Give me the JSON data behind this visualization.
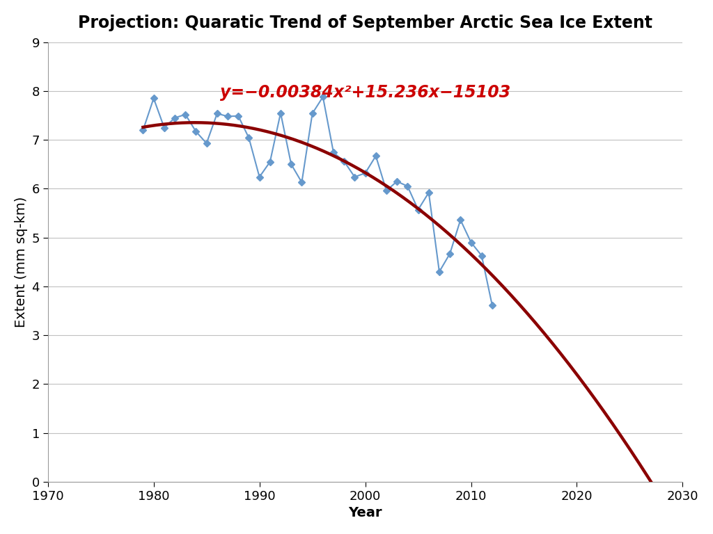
{
  "title": "Projection: Quaratic Trend of September Arctic Sea Ice Extent",
  "xlabel": "Year",
  "ylabel": "Extent (mm sq-km)",
  "equation": "y=−0.00384x²+15.236x−15103",
  "bg_color": "#ffffff",
  "line_color": "#6699cc",
  "trend_color": "#8b0000",
  "eq_color": "#cc0000",
  "xlim": [
    1970,
    2030
  ],
  "ylim": [
    0,
    9
  ],
  "xticks": [
    1970,
    1980,
    1990,
    2000,
    2010,
    2020,
    2030
  ],
  "yticks": [
    0,
    1,
    2,
    3,
    4,
    5,
    6,
    7,
    8,
    9
  ],
  "a": -0.00384,
  "b": 15.236,
  "c": -15103,
  "trend_x_start": 1979,
  "trend_x_end": 2028,
  "data_years": [
    1979,
    1980,
    1981,
    1982,
    1983,
    1984,
    1985,
    1986,
    1987,
    1988,
    1989,
    1990,
    1991,
    1992,
    1993,
    1994,
    1995,
    1996,
    1997,
    1998,
    1999,
    2000,
    2001,
    2002,
    2003,
    2004,
    2005,
    2006,
    2007,
    2008,
    2009,
    2010,
    2011,
    2012
  ],
  "data_values": [
    7.2,
    7.85,
    7.25,
    7.45,
    7.52,
    7.17,
    6.93,
    7.54,
    7.48,
    7.49,
    7.04,
    6.24,
    6.55,
    7.55,
    6.5,
    6.13,
    7.54,
    7.88,
    6.74,
    6.56,
    6.24,
    6.32,
    6.67,
    5.96,
    6.15,
    6.05,
    5.57,
    5.92,
    4.3,
    4.67,
    5.36,
    4.9,
    4.63,
    3.61
  ],
  "title_fontsize": 17,
  "label_fontsize": 14,
  "tick_fontsize": 13,
  "eq_fontsize": 17
}
